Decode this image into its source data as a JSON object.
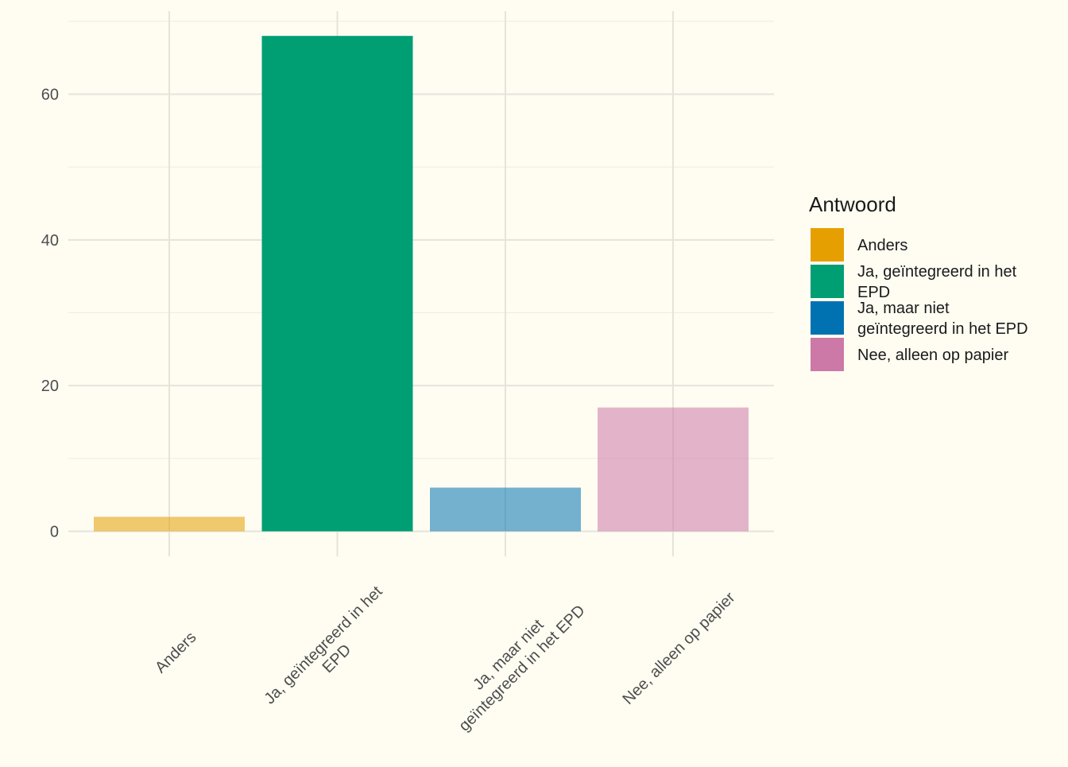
{
  "chart_data": {
    "type": "bar",
    "categories": [
      "Anders",
      "Ja, geïntegreerd in het EPD",
      "Ja, maar niet geïntegreerd in het EPD",
      "Nee, alleen op papier"
    ],
    "x_tick_labels": [
      [
        "Anders"
      ],
      [
        "Ja, geïntegreerd in het",
        "EPD"
      ],
      [
        "Ja, maar niet",
        "geïntegreerd in het EPD"
      ],
      [
        "Nee, alleen op papier"
      ]
    ],
    "values": [
      2,
      68,
      6,
      17
    ],
    "ylim": [
      0,
      70
    ],
    "y_ticks": [
      0,
      20,
      40,
      60
    ],
    "x_tick_rotation": "45 degrees",
    "grid": true,
    "colors": [
      "#E69F00",
      "#009E73",
      "#0072B2",
      "#CC79A7"
    ],
    "bar_alpha": [
      0.55,
      1.0,
      0.55,
      0.55
    ],
    "background": "#fffdf2",
    "legend": {
      "title": "Antwoord",
      "position": "right",
      "entries": [
        [
          "Anders"
        ],
        [
          "Ja, geïntegreerd in het",
          "EPD"
        ],
        [
          "Ja, maar niet",
          "geïntegreerd in het EPD"
        ],
        [
          "Nee, alleen op papier"
        ]
      ]
    }
  }
}
